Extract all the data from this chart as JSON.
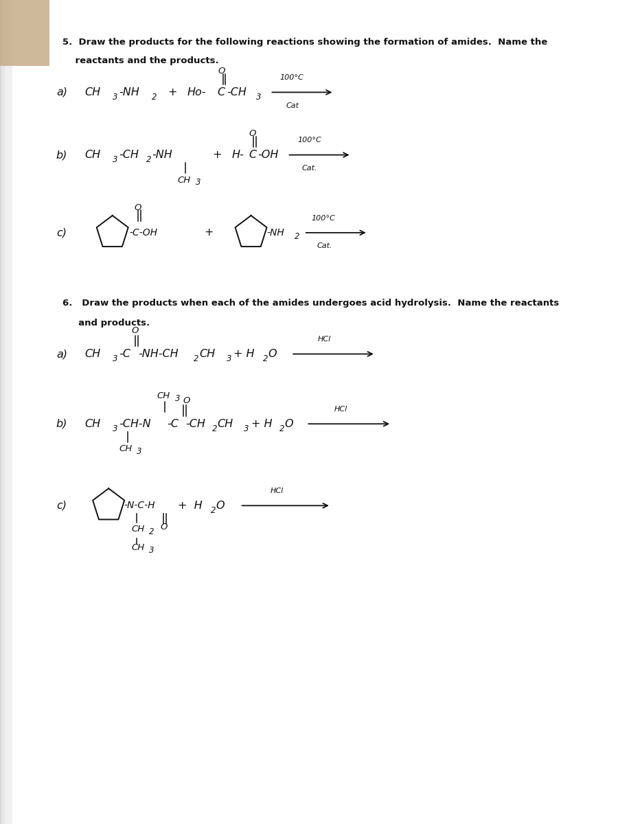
{
  "bg_color": "#d8d8d8",
  "page_color": "#e8e8e8",
  "ink_color": "#111111",
  "figsize": [
    9.0,
    12.0
  ],
  "dpi": 100,
  "title5_line1": "5.  Draw the products for the following reactions showing the formation of amides.  Name the",
  "title5_line2": "    reactants and the products.",
  "title6_line1": "6.   Draw the products when each of the amides undergoes acid hydrolysis.  Name the reactants",
  "title6_line2": "     and products.",
  "hand_font": "DejaVu Sans",
  "hand_style": "italic"
}
